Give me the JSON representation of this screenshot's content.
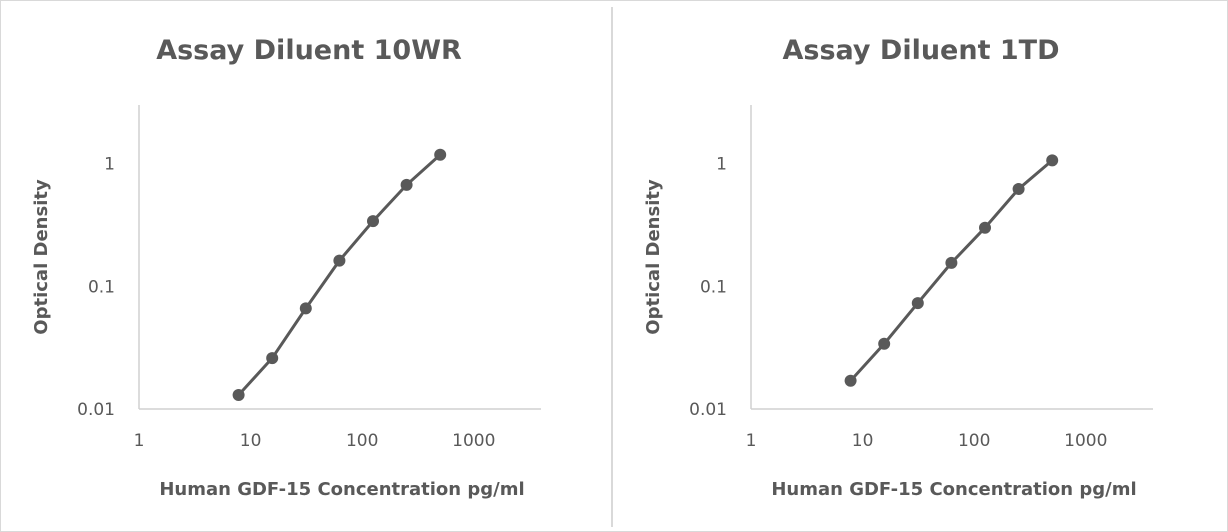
{
  "chart_data": [
    {
      "type": "scatter",
      "title": "Assay Diluent 10WR",
      "xlabel": "Human GDF-15 Concentration pg/ml",
      "ylabel": "Optical Density",
      "xscale": "log",
      "yscale": "log",
      "xlim": [
        1,
        4000
      ],
      "ylim": [
        0.01,
        3
      ],
      "xticks": [
        "1",
        "10",
        "100",
        "1000"
      ],
      "yticks": [
        "1",
        "0.1",
        "0.01"
      ],
      "grid": false,
      "legend": "none",
      "series": [
        {
          "x": [
            7.8,
            15.6,
            31.25,
            62.5,
            125,
            250,
            500
          ],
          "y": [
            0.013,
            0.026,
            0.066,
            0.162,
            0.34,
            0.67,
            1.18
          ]
        }
      ]
    },
    {
      "type": "scatter",
      "title": "Assay Diluent 1TD",
      "xlabel": "Human GDF-15 Concentration pg/ml",
      "ylabel": "Optical Density",
      "xscale": "log",
      "yscale": "log",
      "xlim": [
        1,
        4000
      ],
      "ylim": [
        0.01,
        3
      ],
      "xticks": [
        "1",
        "10",
        "100",
        "1000"
      ],
      "yticks": [
        "1",
        "0.1",
        "0.01"
      ],
      "grid": false,
      "legend": "none",
      "series": [
        {
          "x": [
            7.8,
            15.6,
            31.25,
            62.5,
            125,
            250,
            500
          ],
          "y": [
            0.017,
            0.034,
            0.073,
            0.155,
            0.3,
            0.62,
            1.06
          ]
        }
      ]
    }
  ]
}
